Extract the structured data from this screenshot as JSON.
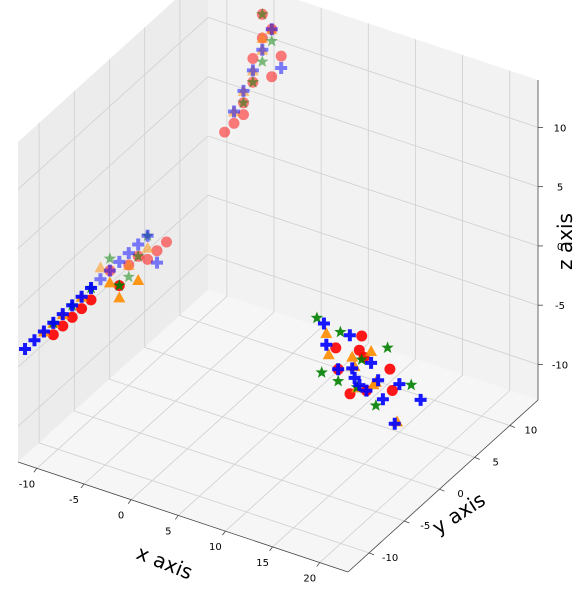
{
  "chart_data": {
    "type": "scatter",
    "projection": "3d",
    "xlabel": "x axis",
    "ylabel": "y axis",
    "zlabel": "z axis",
    "xlim": [
      -12,
      23
    ],
    "ylim": [
      -13,
      14
    ],
    "zlim": [
      -13,
      14
    ],
    "xticks": [
      "-10",
      "-5",
      "0",
      "5",
      "10",
      "15",
      "20"
    ],
    "yticks": [
      "-10",
      "-5",
      "0",
      "5",
      "10"
    ],
    "zticks": [
      "-10",
      "-5",
      "0",
      "5",
      "10"
    ],
    "grid": true,
    "legend": "none",
    "series": [
      {
        "color": "#ff0000",
        "marker": "circle",
        "points": [
          [
            -3,
            -12,
            5
          ],
          [
            -2,
            -12,
            4
          ],
          [
            -5,
            -12,
            2
          ],
          [
            -7,
            -12,
            0
          ],
          [
            -8,
            -12,
            -1
          ],
          [
            -6,
            -12,
            1
          ],
          [
            -1,
            -12,
            6
          ],
          [
            0,
            -12,
            7
          ],
          [
            2,
            -12,
            8
          ],
          [
            3,
            -12,
            9
          ],
          [
            1,
            -12,
            7
          ],
          [
            -9,
            -12,
            -2
          ],
          [
            -8,
            11,
            3
          ],
          [
            -7,
            11,
            4
          ],
          [
            -6,
            11,
            6
          ],
          [
            -5,
            11,
            8
          ],
          [
            -5,
            11,
            10
          ],
          [
            -4,
            11,
            12
          ],
          [
            -4,
            11,
            14
          ],
          [
            -3,
            11,
            13
          ],
          [
            -2,
            11,
            11
          ],
          [
            -6,
            11,
            5
          ],
          [
            -3,
            11,
            9
          ],
          [
            12,
            0,
            -4
          ],
          [
            13,
            -1,
            -5
          ],
          [
            14,
            1,
            -3
          ],
          [
            15,
            0,
            -4
          ],
          [
            16,
            -1,
            -6
          ],
          [
            17,
            1,
            -5
          ],
          [
            18,
            0,
            -6
          ],
          [
            13,
            2,
            -5
          ],
          [
            15,
            -2,
            -6
          ]
        ]
      },
      {
        "color": "#ff8c00",
        "marker": "triangle",
        "points": [
          [
            -4,
            -12,
            5
          ],
          [
            -2,
            -12,
            3
          ],
          [
            -6,
            -12,
            2
          ],
          [
            -8,
            -12,
            0
          ],
          [
            -10,
            -12,
            -2
          ],
          [
            -1,
            -12,
            6
          ],
          [
            0,
            -12,
            5
          ],
          [
            1,
            -12,
            8
          ],
          [
            -3,
            -12,
            4
          ],
          [
            -9,
            -12,
            -1
          ],
          [
            -6,
            11,
            7
          ],
          [
            -5,
            11,
            9
          ],
          [
            -4,
            11,
            11
          ],
          [
            -3,
            11,
            13
          ],
          [
            -4,
            11,
            12
          ],
          [
            -7,
            11,
            5
          ],
          [
            11,
            0,
            -3
          ],
          [
            12,
            -1,
            -4
          ],
          [
            14,
            0,
            -5
          ],
          [
            15,
            1,
            -4
          ],
          [
            16,
            0,
            -6
          ],
          [
            17,
            -1,
            -5
          ],
          [
            20,
            -2,
            -7
          ],
          [
            13,
            1,
            -5
          ],
          [
            15,
            -1,
            -6
          ]
        ]
      },
      {
        "color": "#008000",
        "marker": "star",
        "points": [
          [
            -3,
            -12,
            6
          ],
          [
            -1,
            -12,
            5
          ],
          [
            -5,
            -12,
            3
          ],
          [
            -7,
            -12,
            1
          ],
          [
            -9,
            -12,
            -1
          ],
          [
            0,
            -12,
            7
          ],
          [
            1,
            -12,
            9
          ],
          [
            -2,
            -12,
            4
          ],
          [
            -6,
            11,
            6
          ],
          [
            -5,
            11,
            8
          ],
          [
            -4,
            11,
            10
          ],
          [
            -3,
            11,
            12
          ],
          [
            -4,
            11,
            14
          ],
          [
            10,
            0,
            -2
          ],
          [
            12,
            -2,
            -5
          ],
          [
            14,
            1,
            -5
          ],
          [
            15,
            -1,
            -6
          ],
          [
            16,
            2,
            -4
          ],
          [
            17,
            -1,
            -7
          ],
          [
            20,
            0,
            -5
          ],
          [
            11,
            2,
            -4
          ],
          [
            13,
            -1,
            -6
          ]
        ]
      },
      {
        "color": "#0000ff",
        "marker": "plus",
        "points": [
          [
            -12,
            -12,
            -4
          ],
          [
            -11,
            -12,
            -3
          ],
          [
            -10,
            -12,
            -2
          ],
          [
            -8,
            -12,
            0
          ],
          [
            -7,
            -12,
            1
          ],
          [
            -6,
            -12,
            2
          ],
          [
            -5,
            -12,
            3
          ],
          [
            -4,
            -12,
            4
          ],
          [
            -3,
            -12,
            5
          ],
          [
            -2,
            -12,
            6
          ],
          [
            -1,
            -12,
            7
          ],
          [
            0,
            -12,
            8
          ],
          [
            1,
            -12,
            9
          ],
          [
            2,
            -12,
            7
          ],
          [
            -9,
            -12,
            -1
          ],
          [
            -7,
            11,
            5
          ],
          [
            -6,
            11,
            7
          ],
          [
            -5,
            11,
            9
          ],
          [
            -4,
            11,
            11
          ],
          [
            -3,
            11,
            13
          ],
          [
            -2,
            11,
            10
          ],
          [
            10,
            1,
            -3
          ],
          [
            11,
            0,
            -4
          ],
          [
            12,
            2,
            -4
          ],
          [
            13,
            -1,
            -5
          ],
          [
            14,
            0,
            -6
          ],
          [
            15,
            1,
            -5
          ],
          [
            16,
            -1,
            -6
          ],
          [
            17,
            0,
            -7
          ],
          [
            18,
            1,
            -6
          ],
          [
            19,
            -1,
            -8
          ],
          [
            21,
            0,
            -6
          ],
          [
            15,
            2,
            -7
          ],
          [
            13,
            1,
            -6
          ],
          [
            16,
            -2,
            -5
          ]
        ]
      }
    ]
  }
}
